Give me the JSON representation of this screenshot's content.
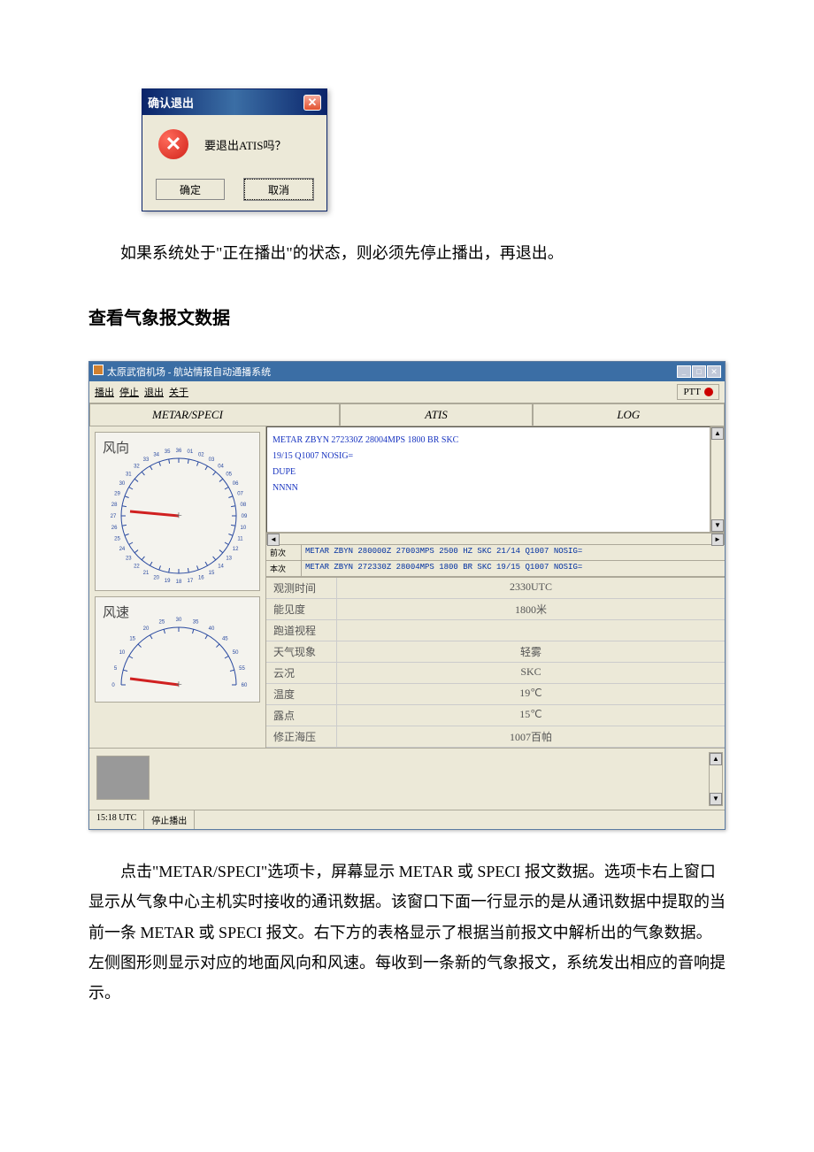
{
  "dialog": {
    "title": "确认退出",
    "message": "要退出ATIS吗？",
    "ok": "确定",
    "cancel": "取消"
  },
  "para1": "如果系统处于\"正在播出\"的状态，则必须先停止播出，再退出。",
  "heading1": "查看气象报文数据",
  "mainwin": {
    "title": "太原武宿机场  -  航站情报自动通播系统",
    "menu": {
      "a": "播出",
      "b": "停止",
      "c": "退出",
      "d": "关于"
    },
    "ptt": "PTT",
    "tabs": {
      "t1": "METAR/SPECI",
      "t2": "ATIS",
      "t3": "LOG"
    },
    "gauge1_label": "风向",
    "gauge2_label": "风速",
    "msg_lines": {
      "l1": "METAR ZBYN 272330Z 28004MPS 1800 BR SKC",
      "l2": "19/15 Q1007 NOSIG=",
      "l3": "DUPE",
      "l4": "NNNN"
    },
    "prev": {
      "label": "前次",
      "val": "METAR ZBYN 280000Z 27003MPS 2500 HZ SKC    21/14 Q1007 NOSIG="
    },
    "curr": {
      "label": "本次",
      "val": "METAR ZBYN 272330Z 28004MPS 1800 BR SKC    19/15 Q1007 NOSIG="
    },
    "table": {
      "r1": {
        "k": "观测时间",
        "v": "2330UTC"
      },
      "r2": {
        "k": "能见度",
        "v": "1800米"
      },
      "r3": {
        "k": "跑道视程",
        "v": ""
      },
      "r4": {
        "k": "天气现象",
        "v": "轻雾"
      },
      "r5": {
        "k": "云况",
        "v": "SKC"
      },
      "r6": {
        "k": "温度",
        "v": "19℃"
      },
      "r7": {
        "k": "露点",
        "v": "15℃"
      },
      "r8": {
        "k": "修正海压",
        "v": "1007百帕"
      }
    },
    "status": {
      "time": "15:18 UTC",
      "state": "停止播出"
    }
  },
  "para2": "点击\"METAR/SPECI\"选项卡，屏幕显示 METAR 或 SPECI 报文数据。选项卡右上窗口显示从气象中心主机实时接收的通讯数据。该窗口下面一行显示的是从通讯数据中提取的当前一条 METAR 或 SPECI 报文。右下方的表格显示了根据当前报文中解析出的气象数据。左侧图形则显示对应的地面风向和风速。每收到一条新的气象报文，系统发出相应的音响提示。",
  "gauge": {
    "dir_scale": [
      18,
      19,
      20,
      21,
      22,
      23,
      24,
      25,
      26,
      27,
      28,
      29,
      30,
      31,
      32,
      33,
      34,
      35,
      36,
      "01",
      "02",
      "03",
      "04",
      "05",
      "06",
      "07",
      "08",
      "09",
      10,
      11,
      12,
      13,
      14,
      15,
      16,
      17
    ],
    "spd_scale": [
      0,
      5,
      10,
      15,
      20,
      25,
      30,
      35,
      40,
      45,
      50,
      55,
      60
    ],
    "needle_color": "#d02020",
    "tick_color": "#2a4aa0"
  }
}
